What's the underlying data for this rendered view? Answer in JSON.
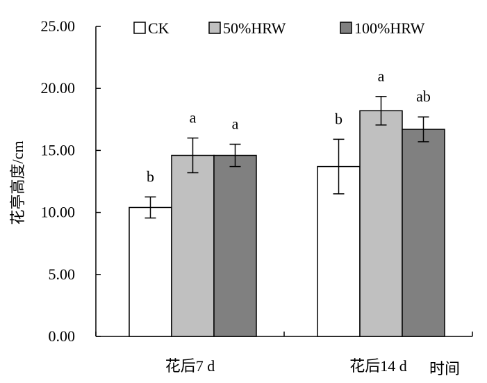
{
  "chart_data": {
    "type": "bar",
    "ylabel": "花亭高度/cm",
    "xlabel": "时间",
    "ylim": [
      0,
      25
    ],
    "y_ticks": [
      "0.00",
      "5.00",
      "10.00",
      "15.00",
      "20.00",
      "25.00"
    ],
    "categories": [
      "花后7 d",
      "花后14 d"
    ],
    "legend_position": "top",
    "series": [
      {
        "name": "CK",
        "color": "#ffffff",
        "values": [
          10.4,
          13.7
        ],
        "errors": [
          0.85,
          2.2
        ],
        "letters": [
          "b",
          "b"
        ]
      },
      {
        "name": "50%HRW",
        "color": "#c0c0c0",
        "values": [
          14.6,
          18.2
        ],
        "errors": [
          1.4,
          1.15
        ],
        "letters": [
          "a",
          "a"
        ]
      },
      {
        "name": "100%HRW",
        "color": "#808080",
        "values": [
          14.6,
          16.7
        ],
        "errors": [
          0.9,
          1.0
        ],
        "letters": [
          "a",
          "ab"
        ]
      }
    ]
  }
}
